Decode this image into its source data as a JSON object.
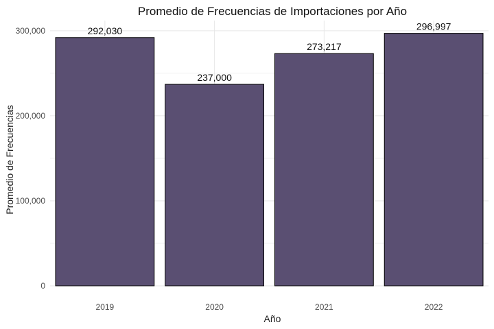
{
  "chart_data": {
    "type": "bar",
    "title": "Promedio de Frecuencias de Importaciones por Año",
    "xlabel": "Año",
    "ylabel": "Promedio de Frecuencias",
    "categories": [
      "2019",
      "2020",
      "2021",
      "2022"
    ],
    "values": [
      292030,
      237000,
      273217,
      296997
    ],
    "value_labels": [
      "292,030",
      "237,000",
      "273,217",
      "296,997"
    ],
    "ylim": [
      0,
      312000
    ],
    "yticks": [
      0,
      100000,
      200000,
      300000
    ],
    "ytick_labels": [
      "0",
      "100,000",
      "200,000",
      "300,000"
    ],
    "grid": true,
    "bar_color": "#5a4f72",
    "bar_edge_color": "#000000"
  }
}
